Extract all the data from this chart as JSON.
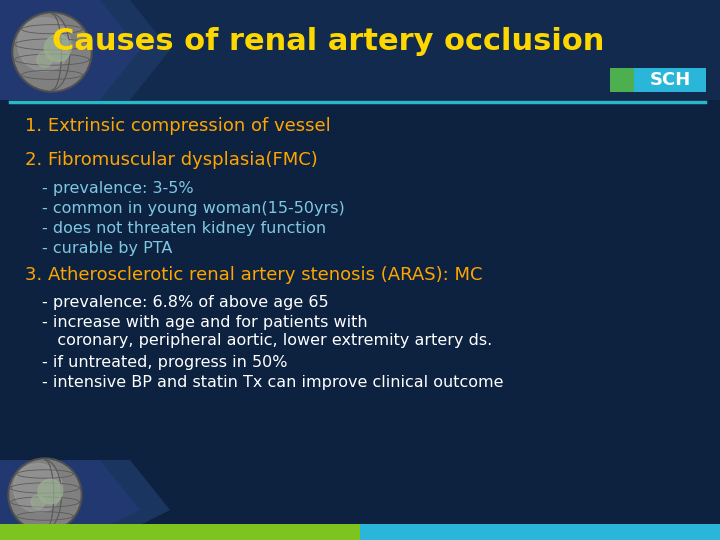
{
  "title": "Causes of renal artery occlusion",
  "title_color": "#FFD700",
  "bg_color": "#0d2240",
  "bg_color2": "#0a1e3a",
  "header_bg": "#102848",
  "line_color": "#2ab8c8",
  "sch_green": "#4CAF50",
  "sch_cyan": "#29b6d8",
  "sch_text": "SCH",
  "item1_text": "1. Extrinsic compression of vessel",
  "item1_color": "#FFA500",
  "item2_text": "2. Fibromuscular dysplasia(FMC)",
  "item2_color": "#FFA500",
  "item2_bullets": [
    "- prevalence: 3-5%",
    "- common in young woman(15-50yrs)",
    "- does not threaten kidney function",
    "- curable by PTA"
  ],
  "item2_bullet_color": "#7ec8e3",
  "item3_text": "3. Atherosclerotic renal artery stenosis (ARAS): MC",
  "item3_color": "#FFA500",
  "item3_bullets": [
    "- prevalence: 6.8% of above age 65",
    "- increase with age and for patients with",
    "   coronary, peripheral aortic, lower extremity artery ds.",
    "- if untreated, progress in 50%",
    "- intensive BP and statin Tx can improve clinical outcome"
  ],
  "item3_bullet_color": "#FFFFFF",
  "chevron_color": "#162e50",
  "bottom_green": "#7ec41e",
  "bottom_cyan": "#29b6d8",
  "globe_outer": "#707070",
  "globe_inner": "#909090",
  "globe_land": "#b0b0b0"
}
